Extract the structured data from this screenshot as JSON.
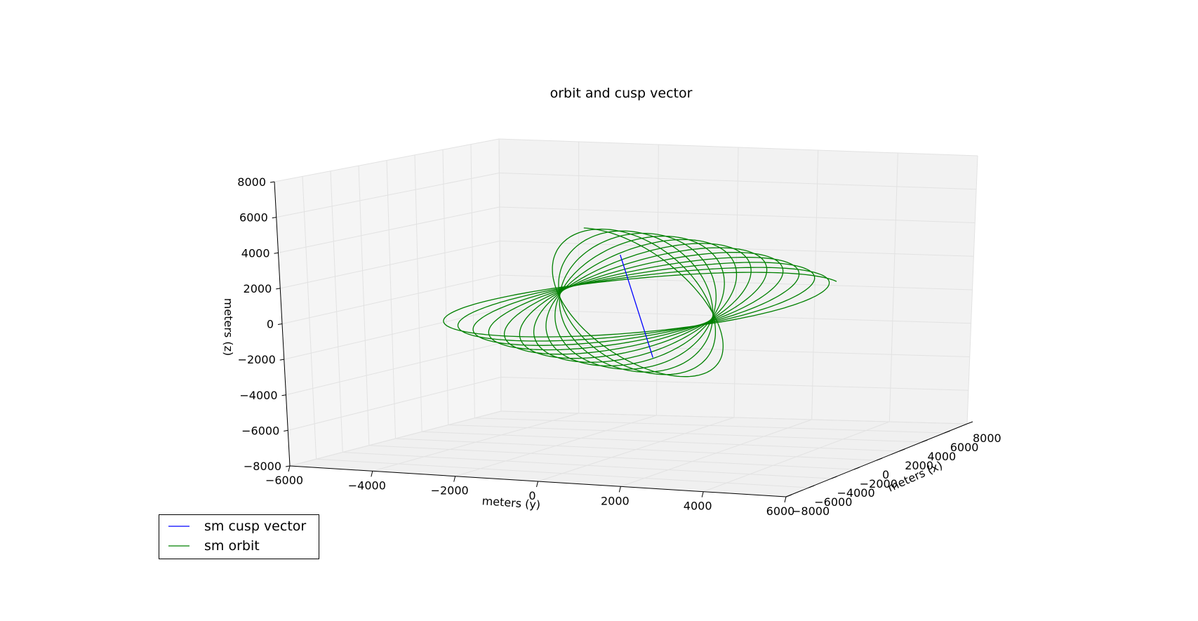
{
  "chart_data": {
    "type": "line",
    "projection": "3d",
    "title": "orbit and cusp vector",
    "xlabel": "meters (x)",
    "ylabel": "meters (y)",
    "zlabel": "meters (z)",
    "xlim": [
      -8000,
      8000
    ],
    "ylim": [
      -6000,
      6000
    ],
    "zlim": [
      -8000,
      8000
    ],
    "x_ticks": [
      "−8000",
      "−6000",
      "−4000",
      "−2000",
      "0",
      "2000",
      "4000",
      "6000",
      "8000"
    ],
    "y_ticks": [
      "−6000",
      "−4000",
      "−2000",
      "0",
      "2000",
      "4000",
      "6000"
    ],
    "z_ticks": [
      "−8000",
      "−6000",
      "−4000",
      "−2000",
      "0",
      "2000",
      "4000",
      "6000",
      "8000"
    ],
    "grid": true,
    "legend_position": "bottom-left, outside axes",
    "series": [
      {
        "name": "sm cusp vector",
        "color": "#0000ff",
        "start": [
          1300,
          -800,
          2600
        ],
        "end": [
          -1300,
          800,
          -2600
        ]
      },
      {
        "name": "sm orbit",
        "color": "#008000",
        "orbit": {
          "semi_major": 6500,
          "semi_minor": 1900,
          "semi_major_axis": [
            -0.62,
            0.5,
            0.6
          ],
          "semi_minor_axis": [
            0.26,
            0.85,
            -0.45
          ],
          "revolutions": 12,
          "precession_deg": [
            -30,
            30
          ]
        }
      }
    ]
  }
}
